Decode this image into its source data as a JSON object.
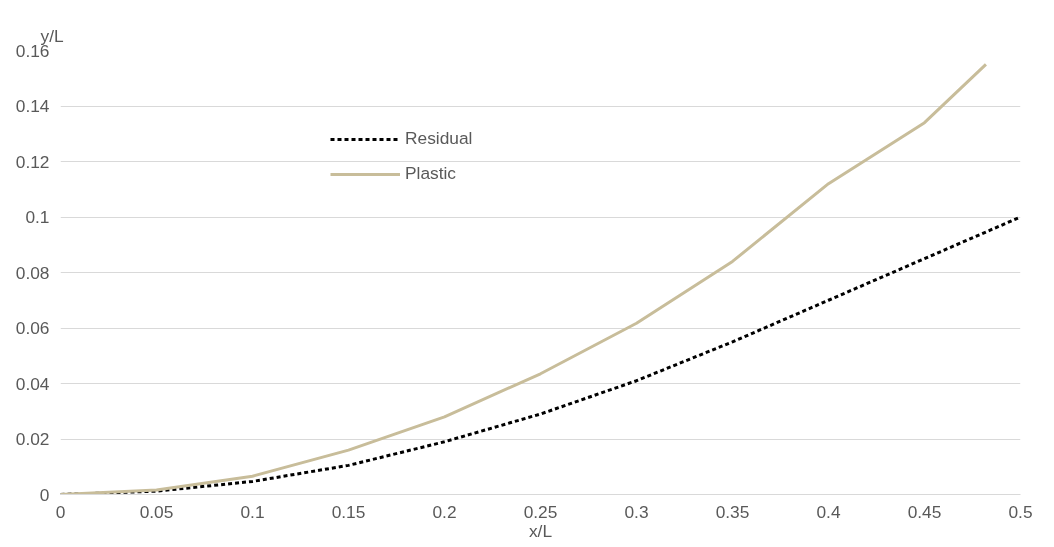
{
  "chart_data": {
    "type": "line",
    "xlabel": "x/L",
    "ylabel": "y/L",
    "series": [
      {
        "name": "Residual",
        "color": "#000000",
        "line_style": "dashed",
        "x": [
          0,
          0.05,
          0.1,
          0.15,
          0.2,
          0.25,
          0.3,
          0.35,
          0.4,
          0.45,
          0.5
        ],
        "values": [
          0,
          0.0012,
          0.0047,
          0.0105,
          0.019,
          0.029,
          0.041,
          0.055,
          0.07,
          0.085,
          0.1
        ]
      },
      {
        "name": "Plastic",
        "color": "#c8bd9a",
        "line_style": "solid",
        "x": [
          0,
          0.05,
          0.1,
          0.15,
          0.2,
          0.25,
          0.3,
          0.35,
          0.4,
          0.45,
          0.482
        ],
        "values": [
          0,
          0.0016,
          0.0066,
          0.016,
          0.028,
          0.0435,
          0.0617,
          0.084,
          0.112,
          0.134,
          0.155
        ]
      }
    ],
    "xlim": [
      0,
      0.5
    ],
    "xticks": [
      0,
      0.05,
      0.1,
      0.15,
      0.2,
      0.25,
      0.3,
      0.35,
      0.4,
      0.45,
      0.5
    ],
    "ylim": [
      0,
      0.16
    ],
    "yticks": [
      0,
      0.02,
      0.04,
      0.06,
      0.08,
      0.1,
      0.12,
      0.14,
      0.16
    ],
    "grid": "y",
    "legend": "top left",
    "marker": "none"
  }
}
